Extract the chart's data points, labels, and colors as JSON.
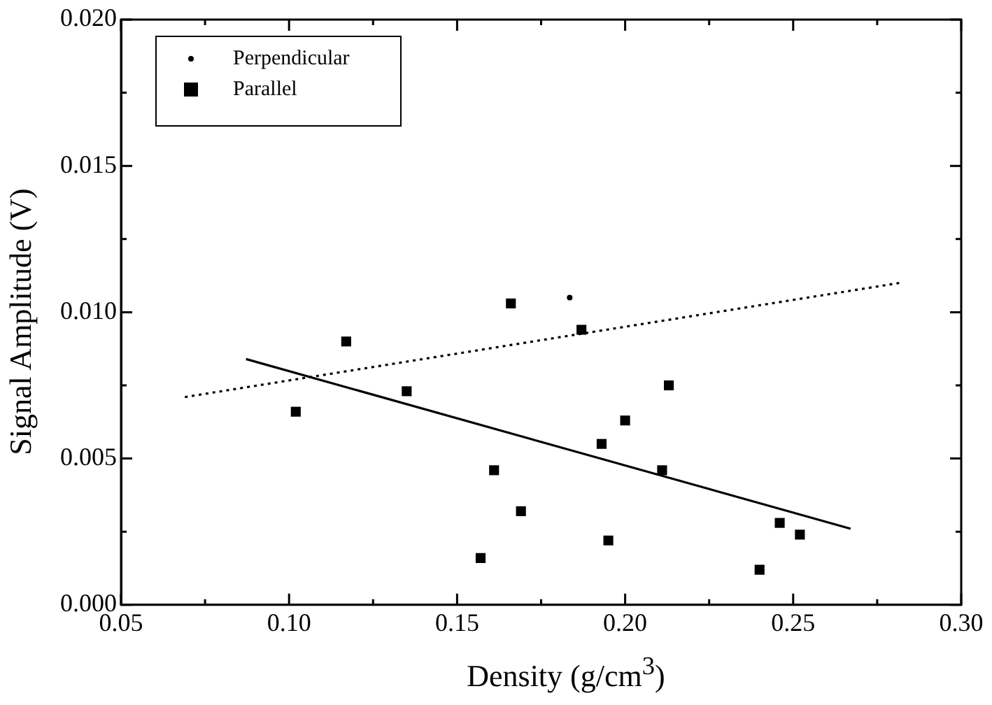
{
  "chart_data": {
    "type": "scatter",
    "xlabel": "Density (g/cm$^{3}$)",
    "ylabel": "Signal Amplitude (V)",
    "xlim": [
      0.05,
      0.3
    ],
    "ylim": [
      0,
      0.02
    ],
    "xticks": [
      0.05,
      {
        "value": 0.075,
        "label": null
      },
      {
        "value": 0.1,
        "label": "0.10"
      },
      {
        "value": 0.125,
        "label": null
      },
      0.15,
      {
        "value": 0.175,
        "label": null
      },
      {
        "value": 0.2,
        "label": "0.20"
      },
      {
        "value": 0.225,
        "label": null
      },
      0.25,
      {
        "value": 0.275,
        "label": null
      },
      {
        "value": 0.3,
        "label": "0.30"
      }
    ],
    "yticks": [
      {
        "value": 0,
        "label": "0.000"
      },
      {
        "value": 0.0025,
        "label": null
      },
      {
        "value": 0.005,
        "label": "0.005"
      },
      {
        "value": 0.0075,
        "label": null
      },
      {
        "value": 0.01,
        "label": "0.010"
      },
      {
        "value": 0.0125,
        "label": null
      },
      {
        "value": 0.015,
        "label": "0.015"
      },
      {
        "value": 0.0175,
        "label": null
      },
      {
        "value": 0.02,
        "label": "0.020"
      }
    ],
    "grid": false,
    "legend": "top left",
    "series": [
      {
        "name": "Perpendicular",
        "type": "scatter",
        "marker": "circle",
        "color": "#000000",
        "x": [
          0.1835
        ],
        "values": [
          0.0105
        ]
      },
      {
        "name": "Parallel",
        "type": "scatter",
        "marker": "square",
        "color": "#000000",
        "x": [
          0.102,
          0.117,
          0.135,
          0.157,
          0.161,
          0.166,
          0.169,
          0.187,
          0.193,
          0.195,
          0.2,
          0.211,
          0.213,
          0.24,
          0.246,
          0.252
        ],
        "values": [
          0.0066,
          0.009,
          0.0073,
          0.0016,
          0.0046,
          0.0103,
          0.0032,
          0.0094,
          0.0055,
          0.0022,
          0.0063,
          0.0046,
          0.0075,
          0.0012,
          0.0028,
          0.0024
        ]
      },
      {
        "type": "line",
        "line_style": "dotted",
        "marker": "none",
        "color": "#000000",
        "x": [
          0.069,
          0.2816
        ],
        "values": [
          0.0071,
          0.011
        ]
      },
      {
        "type": "line",
        "line_style": "solid",
        "marker": "none",
        "color": "#000000",
        "x": [
          0.0872,
          0.2671
        ],
        "values": [
          0.0084,
          0.0026
        ]
      }
    ]
  }
}
